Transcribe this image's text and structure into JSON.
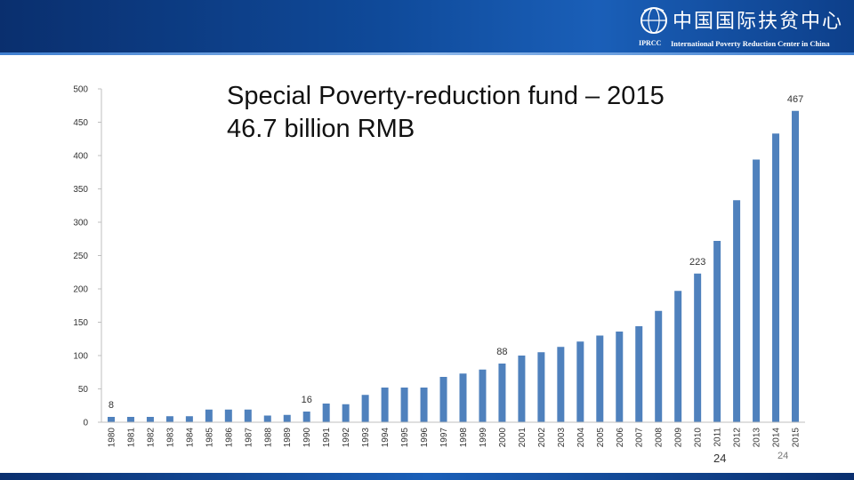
{
  "logo": {
    "cn_name": "中国国际扶贫中心",
    "en_name": "International Poverty Reduction Center in China",
    "abbr": "IPRCC"
  },
  "slide": {
    "title": "Special Poverty-reduction fund – 2015\n46.7 billion RMB",
    "page_number": "24",
    "page_number_small": "24"
  },
  "colors": {
    "bar": "#4f81bd",
    "banner": "#0f4a9a"
  },
  "chart_data": {
    "type": "bar",
    "categories": [
      "1980",
      "1981",
      "1982",
      "1983",
      "1984",
      "1985",
      "1986",
      "1987",
      "1988",
      "1989",
      "1990",
      "1991",
      "1992",
      "1993",
      "1994",
      "1995",
      "1996",
      "1997",
      "1998",
      "1999",
      "2000",
      "2001",
      "2002",
      "2003",
      "2004",
      "2005",
      "2006",
      "2007",
      "2008",
      "2009",
      "2010",
      "2011",
      "2012",
      "2013",
      "2014",
      "2015"
    ],
    "values": [
      8,
      8,
      8,
      9,
      9,
      19,
      19,
      19,
      10,
      11,
      16,
      28,
      27,
      41,
      52,
      52,
      52,
      68,
      73,
      79,
      88,
      100,
      105,
      113,
      121,
      130,
      136,
      144,
      167,
      197,
      223,
      272,
      333,
      394,
      433,
      467
    ],
    "data_labels": [
      {
        "category": "1980",
        "text": "8"
      },
      {
        "category": "1990",
        "text": "16"
      },
      {
        "category": "2000",
        "text": "88"
      },
      {
        "category": "2010",
        "text": "223"
      },
      {
        "category": "2015",
        "text": "467"
      }
    ],
    "yticks": [
      "0",
      "50",
      "100",
      "150",
      "200",
      "250",
      "300",
      "350",
      "400",
      "450",
      "500"
    ],
    "ylim": [
      0,
      500
    ],
    "grid": false
  }
}
